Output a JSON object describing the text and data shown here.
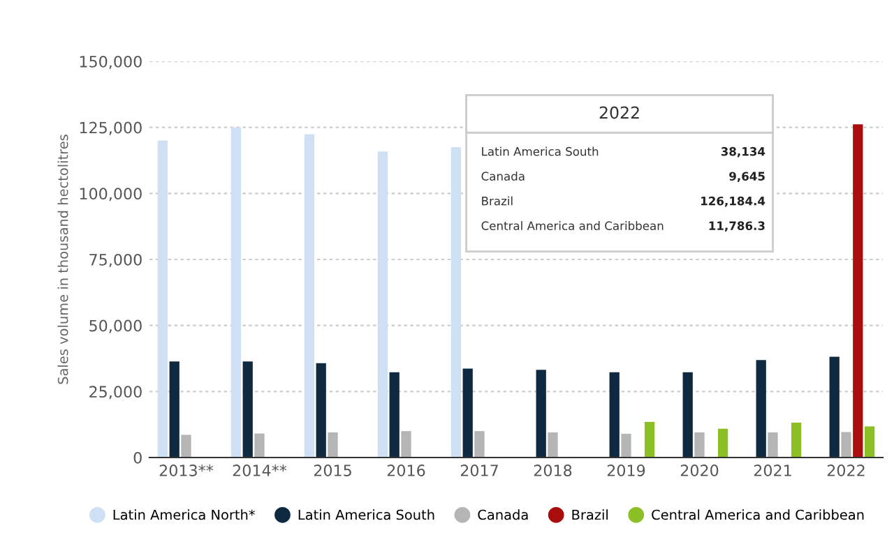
{
  "chart_data": {
    "type": "bar",
    "ylabel": "Sales volume in thousand hectolitres",
    "categories": [
      "2013**",
      "2014**",
      "2015",
      "2016",
      "2017",
      "2018",
      "2019",
      "2020",
      "2021",
      "2022"
    ],
    "series": [
      {
        "name": "Latin America North*",
        "color": "#cfe0f5",
        "values": [
          120000,
          125000,
          122400,
          115900,
          117500,
          null,
          null,
          null,
          null,
          null
        ]
      },
      {
        "name": "Latin America South",
        "color": "#0f2a40",
        "values": [
          36400,
          36400,
          35700,
          32300,
          33700,
          33200,
          32300,
          32300,
          36900,
          38134
        ]
      },
      {
        "name": "Canada",
        "color": "#b5b5b5",
        "values": [
          8600,
          9100,
          9500,
          10000,
          10000,
          9500,
          9000,
          9500,
          9500,
          9645
        ]
      },
      {
        "name": "Brazil",
        "color": "#a90d0d",
        "values": [
          null,
          null,
          null,
          null,
          null,
          null,
          null,
          null,
          null,
          126184.4
        ]
      },
      {
        "name": "Central America and Caribbean",
        "color": "#8cbf26",
        "values": [
          null,
          null,
          null,
          null,
          null,
          null,
          13500,
          10900,
          13200,
          11786.3
        ]
      }
    ],
    "ylim": [
      0,
      150000
    ],
    "yticks": [
      {
        "value": 0,
        "label": "0"
      },
      {
        "value": 25000,
        "label": "25,000"
      },
      {
        "value": 50000,
        "label": "50,000"
      },
      {
        "value": 75000,
        "label": "75,000"
      },
      {
        "value": 100000,
        "label": "100,000"
      },
      {
        "value": 125000,
        "label": "125,000"
      },
      {
        "value": 150000,
        "label": "150,000"
      }
    ],
    "grid": "y",
    "legend": "bottom",
    "annotations": [
      "2022",
      "Latin America South",
      "38,134",
      "Canada",
      "9,645",
      "Brazil",
      "126,184.4",
      "Central America and Caribbean",
      "11,786.3"
    ]
  }
}
